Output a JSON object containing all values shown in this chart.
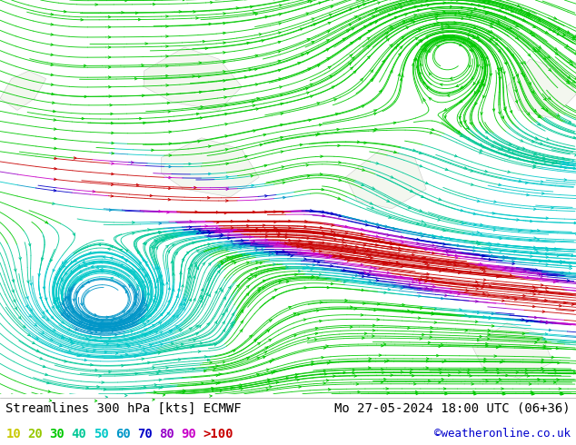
{
  "title_left": "Streamlines 300 hPa [kts] ECMWF",
  "title_right": "Mo 27-05-2024 18:00 UTC (06+36)",
  "credit": "©weatheronline.co.uk",
  "legend_values": [
    "10",
    "20",
    "30",
    "40",
    "50",
    "60",
    "70",
    "80",
    "90",
    ">100"
  ],
  "legend_colors": [
    "#c8c800",
    "#96c800",
    "#00c800",
    "#00c896",
    "#00c8c8",
    "#0096c8",
    "#0000c8",
    "#9600c8",
    "#c800c8",
    "#c80000"
  ],
  "font_family": "monospace",
  "title_fontsize": 10,
  "legend_fontsize": 10,
  "credit_fontsize": 9,
  "fig_width": 6.34,
  "fig_height": 4.9,
  "dpi": 100,
  "map_bg": "#f8f8f8",
  "land_color": "#e8f0e0",
  "coastline_color": "#999999"
}
